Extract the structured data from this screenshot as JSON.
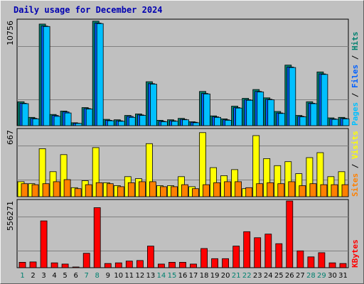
{
  "chart_data": {
    "type": "bar",
    "title": "Daily usage for December 2024",
    "categories": [
      "1",
      "2",
      "3",
      "4",
      "5",
      "6",
      "7",
      "8",
      "9",
      "10",
      "11",
      "12",
      "13",
      "14",
      "15",
      "16",
      "17",
      "18",
      "19",
      "20",
      "21",
      "22",
      "23",
      "24",
      "25",
      "26",
      "27",
      "28",
      "29",
      "30",
      "31"
    ],
    "weekend_days": [
      "1",
      "7",
      "8",
      "14",
      "15",
      "21",
      "22",
      "28",
      "29"
    ],
    "panels": [
      {
        "id": "hits-files-pages",
        "ymax_label": "10756",
        "ymax": 10756,
        "side_labels": [
          "Pages",
          " / ",
          "Files",
          " / ",
          "Hits"
        ],
        "side_colors": [
          "#00c0ff",
          "#000000",
          "#0060ff",
          "#000000",
          "#00806f"
        ],
        "series": [
          {
            "name": "Hits",
            "color": "#00806f",
            "values": [
              2450,
              850,
              10400,
              1150,
              1500,
              300,
              1850,
              10700,
              650,
              600,
              1050,
              1200,
              4500,
              550,
              600,
              750,
              400,
              3500,
              1000,
              700,
              2000,
              2800,
              3700,
              2850,
              1450,
              6200,
              1050,
              2450,
              5500,
              800,
              850
            ]
          },
          {
            "name": "Files",
            "color": "#0060ff",
            "values": [
              2300,
              750,
              10200,
              1050,
              1400,
              250,
              1750,
              10500,
              550,
              500,
              950,
              1100,
              4300,
              450,
              500,
              650,
              350,
              3300,
              900,
              600,
              1850,
              2650,
              3500,
              2700,
              1300,
              6000,
              950,
              2300,
              5300,
              700,
              750
            ]
          },
          {
            "name": "Pages",
            "color": "#00c0ff",
            "values": [
              2250,
              700,
              10150,
              950,
              1300,
              230,
              1700,
              10450,
              500,
              450,
              850,
              1050,
              4250,
              400,
              450,
              600,
              300,
              3250,
              850,
              550,
              1800,
              2600,
              3450,
              2650,
              1250,
              5950,
              900,
              2250,
              5250,
              650,
              700
            ]
          }
        ]
      },
      {
        "id": "visits-sites",
        "ymax_label": "667",
        "ymax": 667,
        "side_labels": [
          "Sites",
          " / ",
          "Visits"
        ],
        "side_colors": [
          "#ff8000",
          "#000000",
          "#ffff00"
        ],
        "series": [
          {
            "name": "Visits",
            "color": "#ffff00",
            "values": [
              150,
              130,
              480,
              250,
              420,
              90,
              160,
              490,
              140,
              110,
              200,
              180,
              530,
              110,
              110,
              200,
              100,
              640,
              290,
              210,
              270,
              80,
              610,
              380,
              310,
              350,
              230,
              390,
              440,
              200,
              250
            ]
          },
          {
            "name": "Sites",
            "color": "#ff8000",
            "values": [
              130,
              120,
              130,
              150,
              170,
              80,
              120,
              140,
              130,
              100,
              140,
              150,
              150,
              100,
              100,
              120,
              80,
              120,
              140,
              150,
              150,
              90,
              130,
              140,
              130,
              150,
              110,
              130,
              120,
              120,
              120
            ]
          }
        ]
      },
      {
        "id": "kbytes",
        "ymax_label": "556271",
        "ymax": 556271,
        "side_labels": [
          "KBytes"
        ],
        "side_colors": [
          "#ff0000"
        ],
        "series": [
          {
            "name": "KBytes",
            "color": "#ff0000",
            "values": [
              45000,
              48000,
              390000,
              40000,
              30000,
              5000,
              120000,
              500000,
              35000,
              40000,
              55000,
              60000,
              180000,
              30000,
              45000,
              45000,
              30000,
              160000,
              75000,
              75000,
              180000,
              300000,
              250000,
              280000,
              200000,
              556271,
              140000,
              90000,
              125000,
              40000,
              35000
            ]
          }
        ]
      }
    ]
  }
}
